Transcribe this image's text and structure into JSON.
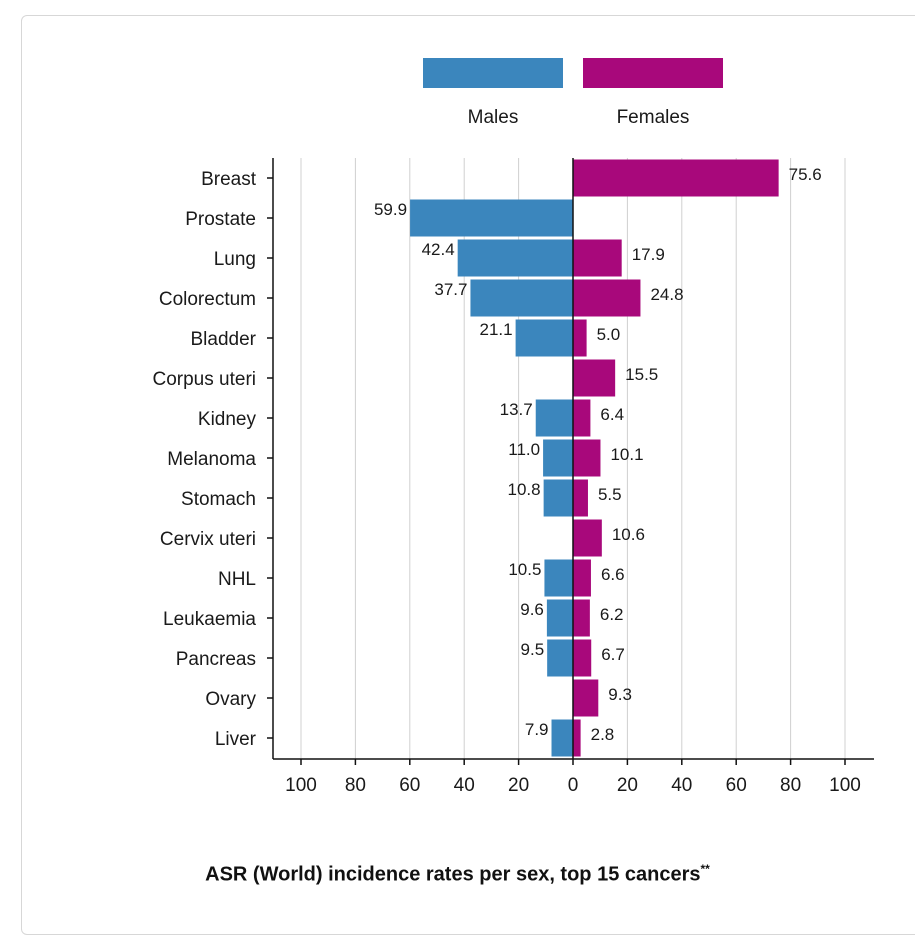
{
  "chart_data": {
    "type": "bar",
    "title": "ASR (World) incidence rates per sex, top 15 cancers",
    "title_sup": "**",
    "categories": [
      "Breast",
      "Prostate",
      "Lung",
      "Colorectum",
      "Bladder",
      "Corpus uteri",
      "Kidney",
      "Melanoma",
      "Stomach",
      "Cervix uteri",
      "NHL",
      "Leukaemia",
      "Pancreas",
      "Ovary",
      "Liver"
    ],
    "series": [
      {
        "name": "Males",
        "color": "#3b86bd",
        "values": [
          null,
          59.9,
          42.4,
          37.7,
          21.1,
          null,
          13.7,
          11.0,
          10.8,
          null,
          10.5,
          9.6,
          9.5,
          null,
          7.9
        ],
        "labels": [
          "",
          "59.9",
          "42.4",
          "37.7",
          "21.1",
          "",
          "13.7",
          "11.0",
          "10.8",
          "",
          "10.5",
          "9.6",
          "9.5",
          "",
          "7.9"
        ]
      },
      {
        "name": "Females",
        "color": "#a8087b",
        "values": [
          75.6,
          null,
          17.9,
          24.8,
          5.0,
          15.5,
          6.4,
          10.1,
          5.5,
          10.6,
          6.6,
          6.2,
          6.7,
          9.3,
          2.8
        ],
        "labels": [
          "75.6",
          "",
          "17.9",
          "24.8",
          "5.0",
          "15.5",
          "6.4",
          "10.1",
          "5.5",
          "10.6",
          "6.6",
          "6.2",
          "6.7",
          "9.3",
          "2.8"
        ]
      }
    ],
    "xlim": [
      -100,
      100
    ],
    "xticks": [
      -100,
      -80,
      -60,
      -40,
      -20,
      0,
      20,
      40,
      60,
      80,
      100
    ],
    "xtick_labels": [
      "100",
      "80",
      "60",
      "40",
      "20",
      "0",
      "20",
      "40",
      "60",
      "80",
      "100"
    ],
    "grid": true,
    "legend_position": "top"
  }
}
